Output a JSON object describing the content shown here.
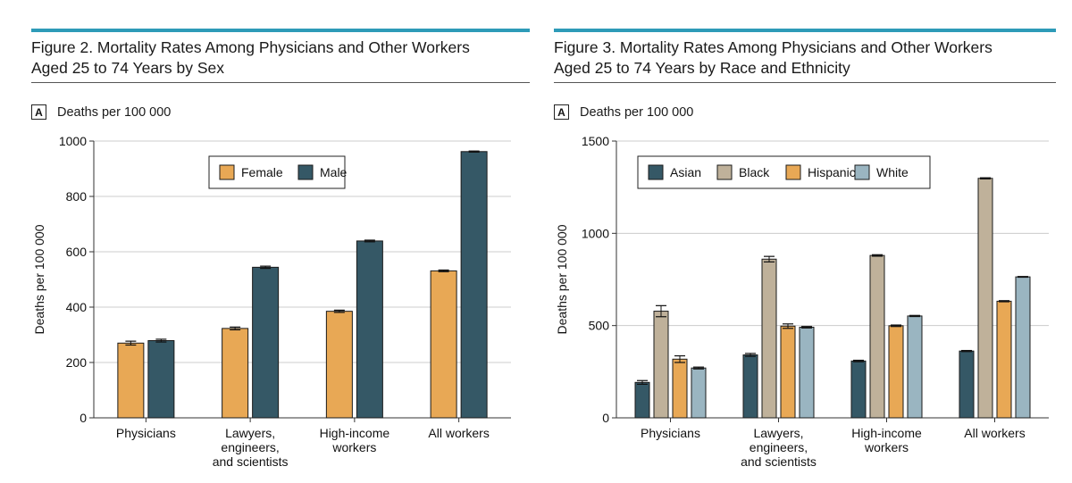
{
  "colors": {
    "accent_bar": "#2e9bb8",
    "female": "#e8a855",
    "male": "#355866",
    "asian": "#355866",
    "black": "#bfb19a",
    "hispanic": "#e8a855",
    "white": "#9ab5c1",
    "grid": "#cccccc",
    "axis": "#333333"
  },
  "figure2": {
    "title_line1": "Figure 2. Mortality Rates Among Physicians and Other Workers",
    "title_line2": "Aged 25 to 74 Years by Sex",
    "panel_letter": "A",
    "panel_label": "Deaths per 100 000"
  },
  "figure3": {
    "title_line1": "Figure 3. Mortality Rates Among Physicians and Other Workers",
    "title_line2": "Aged 25 to 74 Years by Race and Ethnicity",
    "panel_letter": "A",
    "panel_label": "Deaths per 100 000"
  },
  "chart_data": [
    {
      "type": "bar",
      "title": "Figure 2. Mortality Rates Among Physicians and Other Workers Aged 25 to 74 Years by Sex",
      "ylabel": "Deaths per 100 000",
      "xlabel": "",
      "ylim": [
        0,
        1000
      ],
      "yticks": [
        0,
        200,
        400,
        600,
        800,
        1000
      ],
      "grid": true,
      "legend_position": "top-center",
      "categories": [
        [
          "Physicians"
        ],
        [
          "Lawyers,",
          "engineers,",
          "and scientists"
        ],
        [
          "High-income",
          "workers"
        ],
        [
          "All workers"
        ]
      ],
      "series": [
        {
          "name": "Female",
          "color": "#e8a855",
          "values": [
            270,
            323,
            385,
            531
          ],
          "errors": [
            7,
            5,
            4,
            3
          ]
        },
        {
          "name": "Male",
          "color": "#355866",
          "values": [
            279,
            544,
            639,
            962
          ],
          "errors": [
            5,
            4,
            3,
            2
          ]
        }
      ]
    },
    {
      "type": "bar",
      "title": "Figure 3. Mortality Rates Among Physicians and Other Workers Aged 25 to 74 Years by Race and Ethnicity",
      "ylabel": "Deaths per 100 000",
      "xlabel": "",
      "ylim": [
        0,
        1500
      ],
      "yticks": [
        0,
        500,
        1000,
        1500
      ],
      "grid": true,
      "legend_position": "top-center",
      "categories": [
        [
          "Physicians"
        ],
        [
          "Lawyers,",
          "engineers,",
          "and scientists"
        ],
        [
          "High-income",
          "workers"
        ],
        [
          "All workers"
        ]
      ],
      "series": [
        {
          "name": "Asian",
          "color": "#355866",
          "values": [
            192,
            341,
            308,
            362
          ],
          "errors": [
            10,
            8,
            4,
            3
          ]
        },
        {
          "name": "Black",
          "color": "#bfb19a",
          "values": [
            578,
            860,
            880,
            1298
          ],
          "errors": [
            30,
            15,
            4,
            3
          ]
        },
        {
          "name": "Hispanic",
          "color": "#e8a855",
          "values": [
            318,
            497,
            499,
            632
          ],
          "errors": [
            18,
            12,
            4,
            3
          ]
        },
        {
          "name": "White",
          "color": "#9ab5c1",
          "values": [
            270,
            491,
            552,
            764
          ],
          "errors": [
            5,
            4,
            3,
            2
          ]
        }
      ]
    }
  ]
}
